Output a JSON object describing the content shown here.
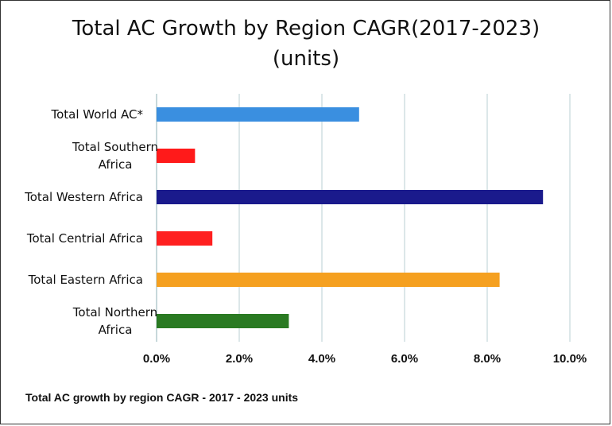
{
  "chart_data": {
    "type": "bar",
    "orientation": "horizontal",
    "title_line1": "Total AC Growth by Region CAGR(2017-2023)",
    "title_line2": "(units)",
    "footer": "Total AC growth by region CAGR - 2017 - 2023 units",
    "categories": [
      {
        "lines": [
          "Total World AC*"
        ],
        "value": 4.9,
        "color": "#3a8fe0"
      },
      {
        "lines": [
          "Total Southern",
          "Africa"
        ],
        "value": 0.93,
        "color": "#ff1a1a"
      },
      {
        "lines": [
          "Total Western Africa"
        ],
        "value": 9.35,
        "color": "#1a1a8c"
      },
      {
        "lines": [
          "Total Centrial Africa"
        ],
        "value": 1.35,
        "color": "#ff2020"
      },
      {
        "lines": [
          "Total Eastern Africa"
        ],
        "value": 8.3,
        "color": "#f5a020"
      },
      {
        "lines": [
          "Total Northern",
          "Africa"
        ],
        "value": 3.2,
        "color": "#2a7a22"
      }
    ],
    "xlim": [
      0,
      10
    ],
    "xticks": [
      {
        "value": 0,
        "label": "0.0%"
      },
      {
        "value": 2,
        "label": "2.0%"
      },
      {
        "value": 4,
        "label": "4.0%"
      },
      {
        "value": 6,
        "label": "6.0%"
      },
      {
        "value": 8,
        "label": "8.0%"
      },
      {
        "value": 10,
        "label": "10.0%"
      }
    ],
    "grid": true,
    "gridColor": "#b9cfd3"
  }
}
